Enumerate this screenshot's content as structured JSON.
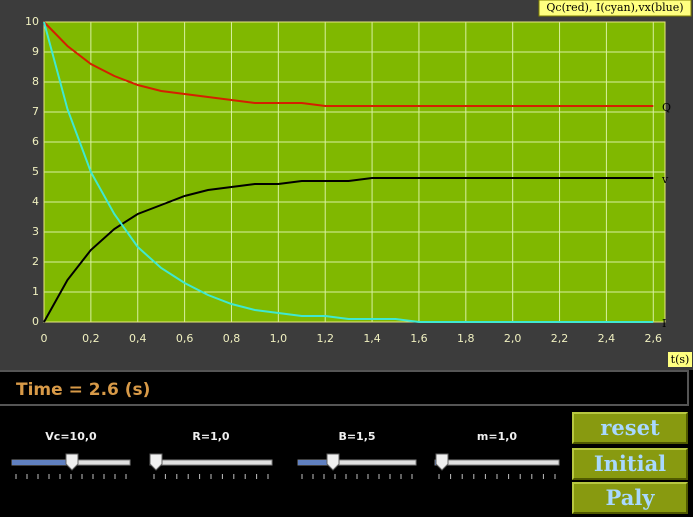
{
  "chart_data": {
    "type": "line",
    "legend_note": "Qc(red), I(cyan),vx(blue)",
    "x_axis_label": "t(s)",
    "x": [
      0,
      0.1,
      0.2,
      0.3,
      0.4,
      0.5,
      0.6,
      0.7,
      0.8,
      0.9,
      1.0,
      1.1,
      1.2,
      1.3,
      1.4,
      1.5,
      1.6,
      1.7,
      1.8,
      1.9,
      2.0,
      2.1,
      2.2,
      2.3,
      2.4,
      2.5,
      2.6
    ],
    "series": [
      {
        "name": "Q",
        "color": "#d42000",
        "values": [
          10,
          9.2,
          8.6,
          8.2,
          7.9,
          7.7,
          7.6,
          7.5,
          7.4,
          7.3,
          7.3,
          7.3,
          7.2,
          7.2,
          7.2,
          7.2,
          7.2,
          7.2,
          7.2,
          7.2,
          7.2,
          7.2,
          7.2,
          7.2,
          7.2,
          7.2,
          7.2
        ]
      },
      {
        "name": "v",
        "color": "#000000",
        "values": [
          0,
          1.4,
          2.4,
          3.1,
          3.6,
          3.9,
          4.2,
          4.4,
          4.5,
          4.6,
          4.6,
          4.7,
          4.7,
          4.7,
          4.8,
          4.8,
          4.8,
          4.8,
          4.8,
          4.8,
          4.8,
          4.8,
          4.8,
          4.8,
          4.8,
          4.8,
          4.8
        ]
      },
      {
        "name": "I",
        "color": "#40e8d0",
        "values": [
          10,
          7.1,
          5.0,
          3.6,
          2.5,
          1.8,
          1.3,
          0.9,
          0.6,
          0.4,
          0.3,
          0.2,
          0.2,
          0.1,
          0.1,
          0.1,
          0,
          0,
          0,
          0,
          0,
          0,
          0,
          0,
          0,
          0,
          0
        ]
      }
    ],
    "xlim": [
      0,
      2.65
    ],
    "ylim": [
      0,
      10
    ],
    "xticks": [
      0,
      {
        "value": 0.2,
        "label": "0,2"
      },
      {
        "value": 0.4,
        "label": "0,4"
      },
      {
        "value": 0.6,
        "label": "0,6"
      },
      {
        "value": 0.8,
        "label": "0,8"
      },
      {
        "value": 1.0,
        "label": "1,0"
      },
      {
        "value": 1.2,
        "label": "1,2"
      },
      {
        "value": 1.4,
        "label": "1,4"
      },
      {
        "value": 1.6,
        "label": "1,6"
      },
      {
        "value": 1.8,
        "label": "1,8"
      },
      {
        "value": 2.0,
        "label": "2,0"
      },
      {
        "value": 2.2,
        "label": "2,2"
      },
      {
        "value": 2.4,
        "label": "2,4"
      },
      {
        "value": 2.6,
        "label": "2,6"
      }
    ],
    "yticks": [
      0,
      1,
      2,
      3,
      4,
      5,
      6,
      7,
      8,
      9,
      10
    ],
    "grid": true
  },
  "status": {
    "time": "Time = 2.6 (s)"
  },
  "controls": {
    "sliders": [
      "Vc=10,0",
      "R=1,0",
      "B=1,5",
      "m=1,0"
    ],
    "buttons": [
      "reset",
      "Initial",
      "Paly"
    ]
  }
}
